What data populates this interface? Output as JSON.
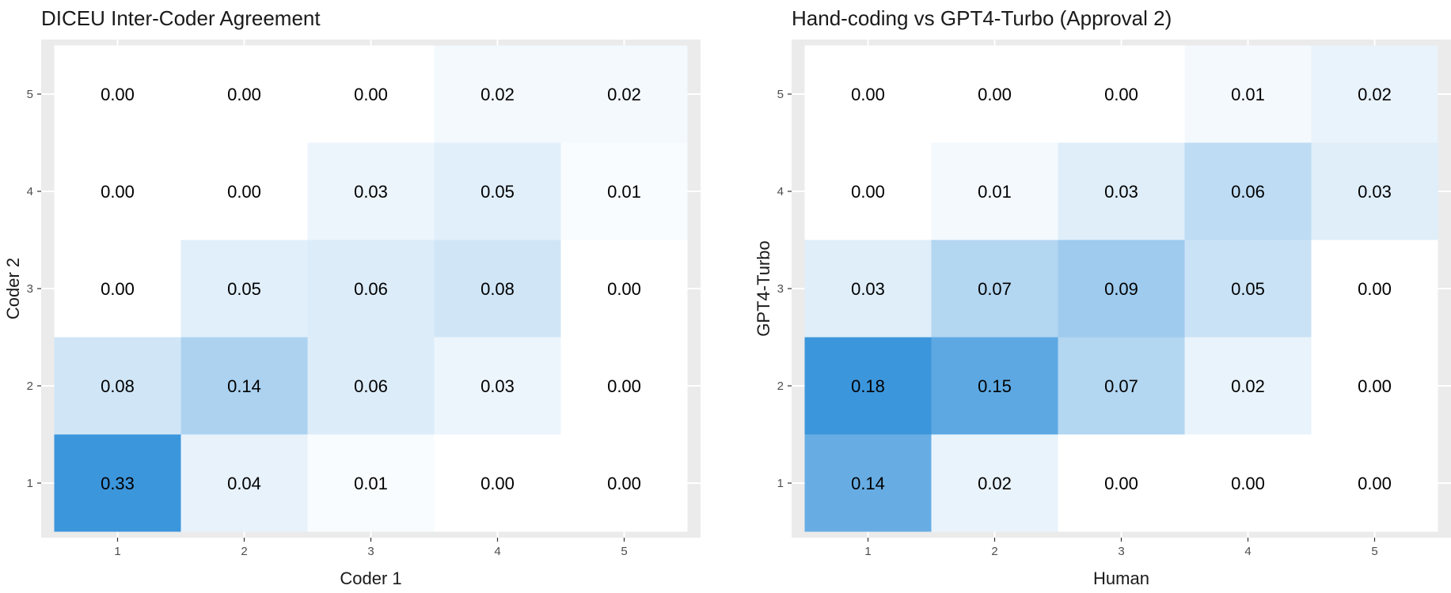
{
  "chart_data": [
    {
      "type": "heatmap",
      "title": "DICEU Inter-Coder Agreement",
      "xlabel": "Coder 1",
      "ylabel": "Coder 2",
      "x_categories": [
        "1",
        "2",
        "3",
        "4",
        "5"
      ],
      "y_categories": [
        "1",
        "2",
        "3",
        "4",
        "5"
      ],
      "values": [
        [
          0.33,
          0.04,
          0.01,
          0.0,
          0.0
        ],
        [
          0.08,
          0.14,
          0.06,
          0.03,
          0.0
        ],
        [
          0.0,
          0.05,
          0.06,
          0.08,
          0.0
        ],
        [
          0.0,
          0.0,
          0.03,
          0.05,
          0.01
        ],
        [
          0.0,
          0.0,
          0.0,
          0.02,
          0.02
        ]
      ],
      "value_range": [
        0,
        0.33
      ],
      "grid": true,
      "colors": {
        "low": "#ffffff",
        "high": "#3c96dc",
        "panel": "#ebebeb"
      }
    },
    {
      "type": "heatmap",
      "title": "Hand-coding vs GPT4-Turbo (Approval 2)",
      "xlabel": "Human",
      "ylabel": "GPT4-Turbo",
      "x_categories": [
        "1",
        "2",
        "3",
        "4",
        "5"
      ],
      "y_categories": [
        "1",
        "2",
        "3",
        "4",
        "5"
      ],
      "values": [
        [
          0.14,
          0.02,
          0.0,
          0.0,
          0.0
        ],
        [
          0.18,
          0.15,
          0.07,
          0.02,
          0.0
        ],
        [
          0.03,
          0.07,
          0.09,
          0.05,
          0.0
        ],
        [
          0.0,
          0.01,
          0.03,
          0.06,
          0.03
        ],
        [
          0.0,
          0.0,
          0.0,
          0.01,
          0.02
        ]
      ],
      "value_range": [
        0,
        0.18
      ],
      "grid": true,
      "colors": {
        "low": "#ffffff",
        "high": "#3c96dc",
        "panel": "#ebebeb"
      }
    }
  ]
}
